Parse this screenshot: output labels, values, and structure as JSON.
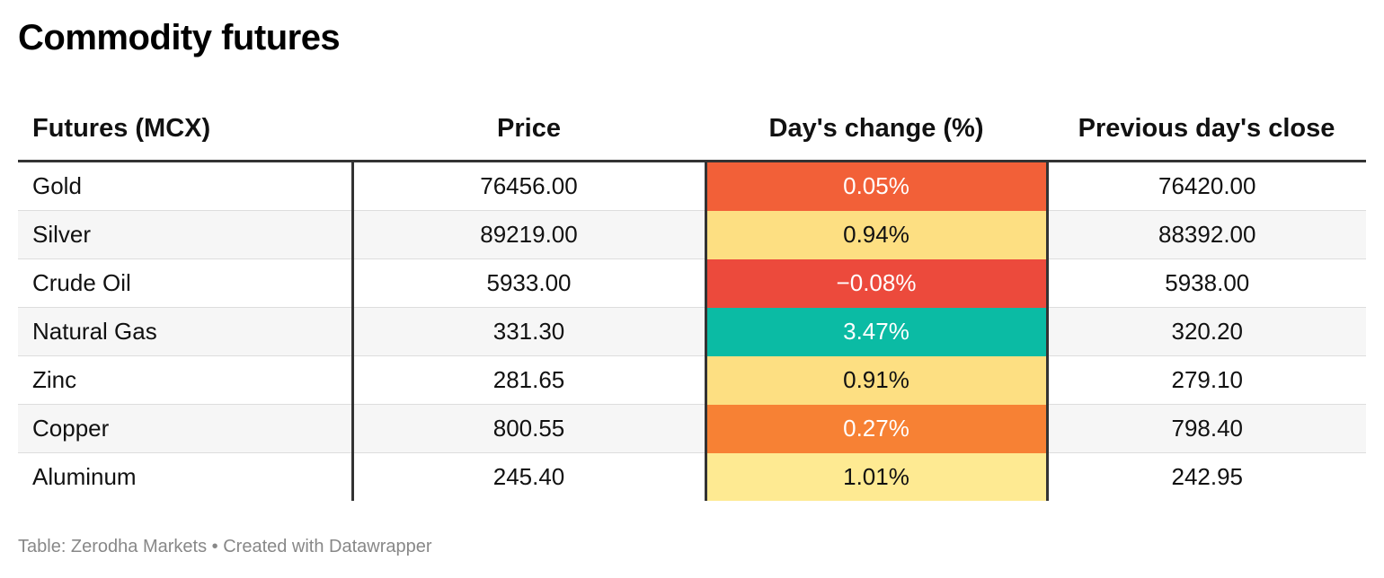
{
  "title": "Commodity futures",
  "footer": "Table: Zerodha Markets • Created with Datawrapper",
  "chart_data": {
    "type": "table",
    "title": "Commodity futures",
    "columns": [
      "Futures (MCX)",
      "Price",
      "Day's change (%)",
      "Previous day's close"
    ],
    "rows": [
      {
        "name": "Gold",
        "price": "76456.00",
        "change": "0.05%",
        "change_value": 0.05,
        "prev_close": "76420.00",
        "color": "#f26038",
        "text_color": "#ffffff"
      },
      {
        "name": "Silver",
        "price": "89219.00",
        "change": "0.94%",
        "change_value": 0.94,
        "prev_close": "88392.00",
        "color": "#fddf82",
        "text_color": "#111111"
      },
      {
        "name": "Crude Oil",
        "price": "5933.00",
        "change": "−0.08%",
        "change_value": -0.08,
        "prev_close": "5938.00",
        "color": "#ec4a3c",
        "text_color": "#ffffff"
      },
      {
        "name": "Natural Gas",
        "price": "331.30",
        "change": "3.47%",
        "change_value": 3.47,
        "prev_close": "320.20",
        "color": "#0bbba4",
        "text_color": "#ffffff"
      },
      {
        "name": "Zinc",
        "price": "281.65",
        "change": "0.91%",
        "change_value": 0.91,
        "prev_close": "279.10",
        "color": "#fddf82",
        "text_color": "#111111"
      },
      {
        "name": "Copper",
        "price": "800.55",
        "change": "0.27%",
        "change_value": 0.27,
        "prev_close": "798.40",
        "color": "#f78134",
        "text_color": "#ffffff"
      },
      {
        "name": "Aluminum",
        "price": "245.40",
        "change": "1.01%",
        "change_value": 1.01,
        "prev_close": "242.95",
        "color": "#feea92",
        "text_color": "#111111"
      }
    ]
  }
}
